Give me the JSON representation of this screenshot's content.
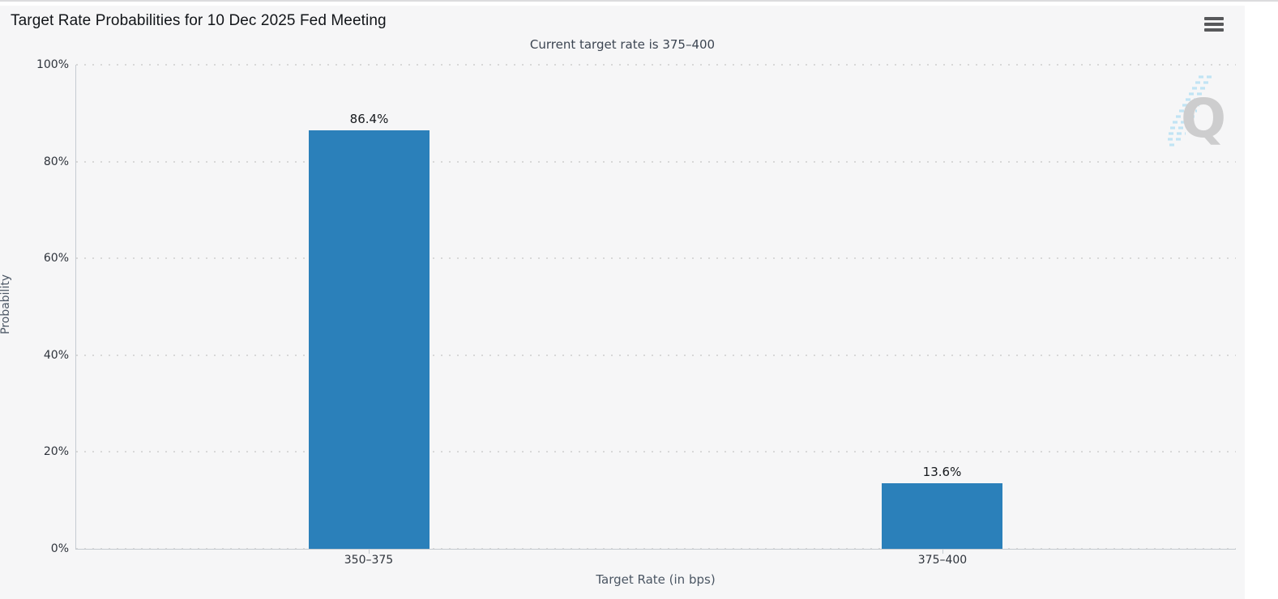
{
  "watermark": {
    "letter": "Q"
  },
  "chart_data": {
    "type": "bar",
    "title": "Target Rate Probabilities for 10 Dec 2025 Fed Meeting",
    "subtitle": "Current target rate is 375–400",
    "categories": [
      "350–375",
      "375–400"
    ],
    "values": [
      86.4,
      13.6
    ],
    "data_labels": [
      "86.4%",
      "13.6%"
    ],
    "xlabel": "Target Rate (in bps)",
    "ylabel": "Probability",
    "ylim": [
      0,
      100
    ],
    "ytick_labels": [
      "100%",
      "80%",
      "60%",
      "40%",
      "20%",
      "0%"
    ],
    "grid": "dotted-horizontal",
    "legend": "none",
    "bar_color": "#2b80ba",
    "background_color": "#f6f6f7"
  }
}
